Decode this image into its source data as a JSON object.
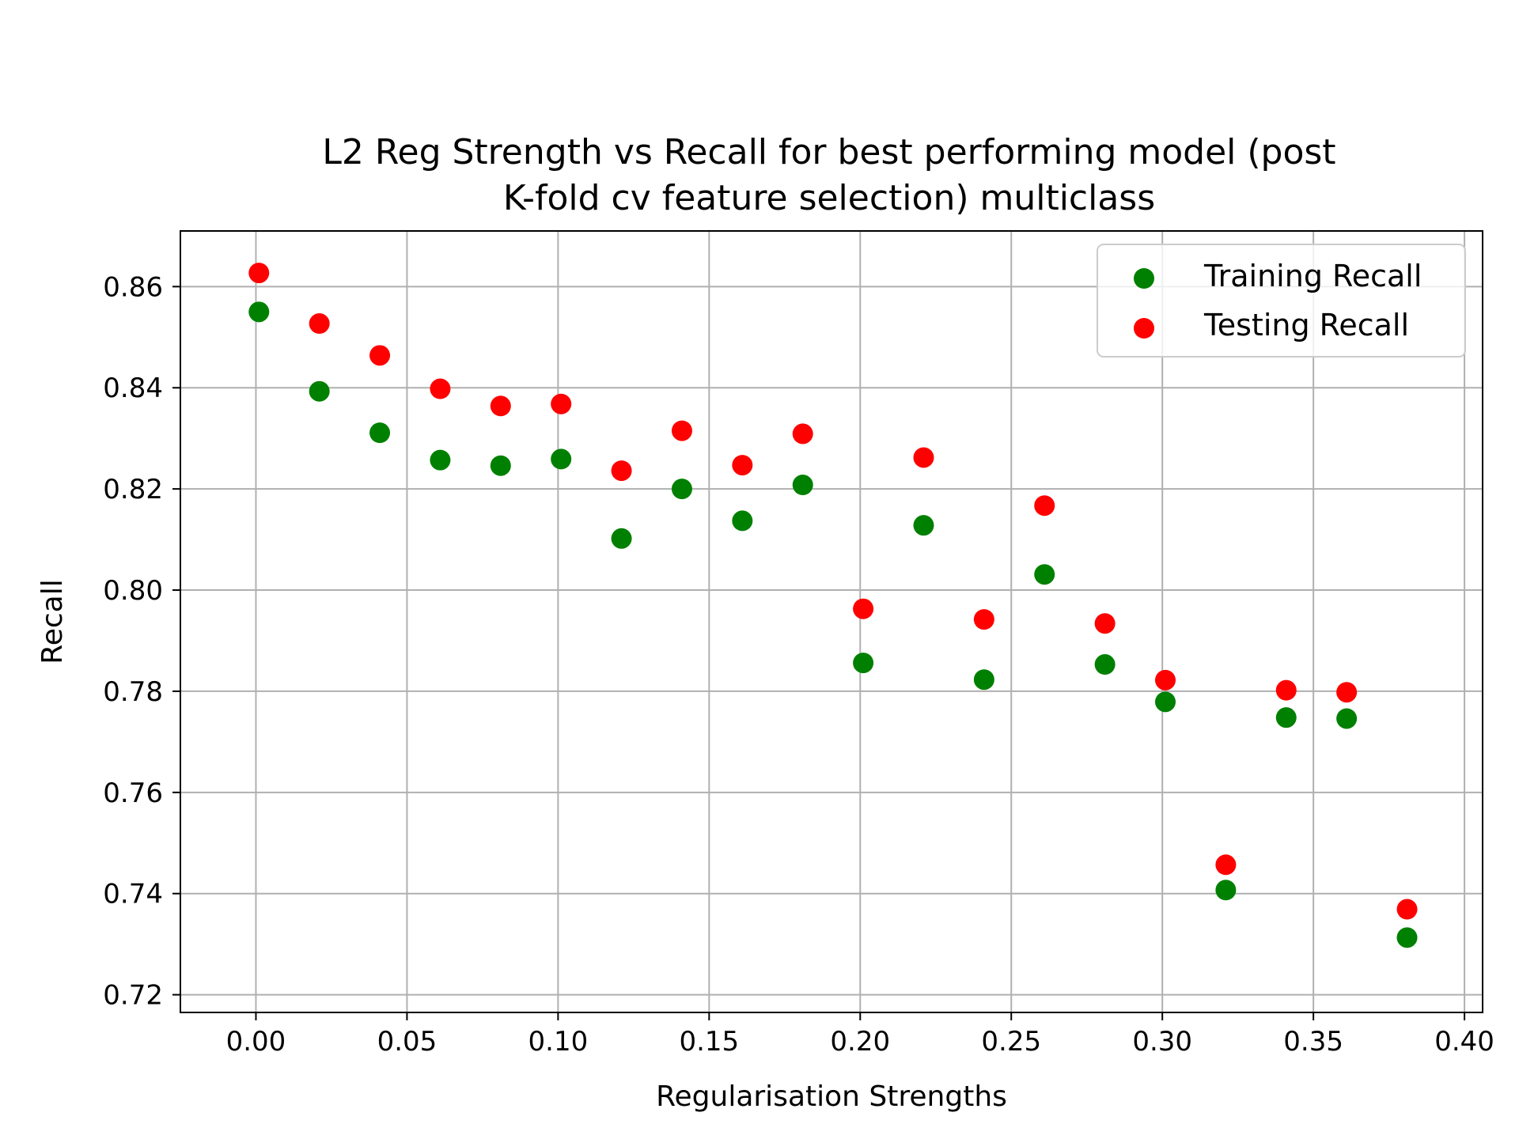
{
  "chart_data": {
    "type": "scatter",
    "title": [
      "L2 Reg Strength vs Recall for best performing model (post",
      "K-fold cv feature selection) multiclass"
    ],
    "xlabel": "Regularisation Strengths",
    "ylabel": "Recall",
    "xlim": [
      -0.025,
      0.406
    ],
    "ylim": [
      0.7165,
      0.871
    ],
    "xticks": [
      0.0,
      0.05,
      0.1,
      0.15,
      0.2,
      0.25,
      0.3,
      0.35,
      0.4
    ],
    "xtick_labels": [
      "0.00",
      "0.05",
      "0.10",
      "0.15",
      "0.20",
      "0.25",
      "0.30",
      "0.35",
      "0.40"
    ],
    "yticks": [
      0.72,
      0.74,
      0.76,
      0.78,
      0.8,
      0.82,
      0.84,
      0.86
    ],
    "ytick_labels": [
      "0.72",
      "0.74",
      "0.76",
      "0.78",
      "0.80",
      "0.82",
      "0.84",
      "0.86"
    ],
    "grid": true,
    "legend_position": "top-right",
    "x": [
      0.001,
      0.021,
      0.041,
      0.061,
      0.081,
      0.101,
      0.121,
      0.141,
      0.161,
      0.181,
      0.201,
      0.221,
      0.241,
      0.261,
      0.281,
      0.301,
      0.321,
      0.341,
      0.361,
      0.381
    ],
    "series": [
      {
        "name": "Training Recall",
        "color": "#008000",
        "values": [
          0.855,
          0.8393,
          0.8311,
          0.8257,
          0.8246,
          0.8259,
          0.8102,
          0.82,
          0.8137,
          0.8208,
          0.7856,
          0.8128,
          0.7823,
          0.8031,
          0.7853,
          0.7779,
          0.7407,
          0.7748,
          0.7746,
          0.7313
        ]
      },
      {
        "name": "Testing Recall",
        "color": "#ff0000",
        "values": [
          0.8627,
          0.8527,
          0.8464,
          0.8398,
          0.8364,
          0.8368,
          0.8236,
          0.8315,
          0.8247,
          0.8309,
          0.7963,
          0.8262,
          0.7942,
          0.8167,
          0.7934,
          0.7822,
          0.7457,
          0.7802,
          0.7798,
          0.7369
        ]
      }
    ]
  }
}
